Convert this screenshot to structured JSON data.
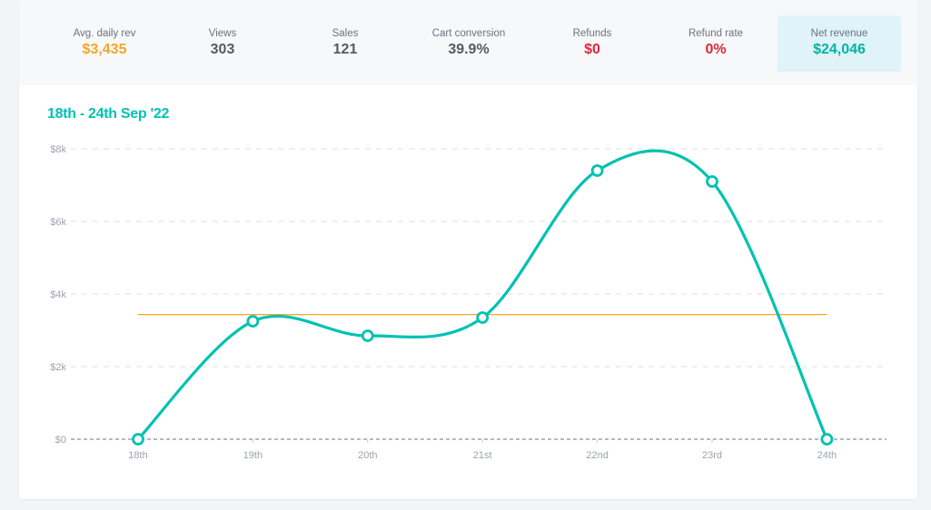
{
  "stats": [
    {
      "label": "Avg. daily rev",
      "value": "$3,435",
      "color": "#f5a623",
      "highlight": false
    },
    {
      "label": "Views",
      "value": "303",
      "color": "#555b63",
      "highlight": false
    },
    {
      "label": "Sales",
      "value": "121",
      "color": "#555b63",
      "highlight": false
    },
    {
      "label": "Cart conversion",
      "value": "39.9%",
      "color": "#555b63",
      "highlight": false
    },
    {
      "label": "Refunds",
      "value": "$0",
      "color": "#e0293b",
      "highlight": false
    },
    {
      "label": "Refund rate",
      "value": "0%",
      "color": "#e0293b",
      "highlight": false
    },
    {
      "label": "Net revenue",
      "value": "$24,046",
      "color": "#00b3a4",
      "highlight": true
    }
  ],
  "chart_data": {
    "type": "line",
    "title": "18th - 24th Sep '22",
    "categories": [
      "18th",
      "19th",
      "20th",
      "21st",
      "22nd",
      "23rd",
      "24th"
    ],
    "series": [
      {
        "values": [
          0,
          3250,
          2850,
          3350,
          7400,
          7100,
          0
        ],
        "color": "#00c2b2"
      }
    ],
    "reference_line": {
      "value": 3435,
      "color": "#f5a623"
    },
    "yticks": [
      "$0",
      "$2k",
      "$4k",
      "$6k",
      "$8k"
    ],
    "ylim": [
      0,
      8000
    ],
    "grid": true
  }
}
